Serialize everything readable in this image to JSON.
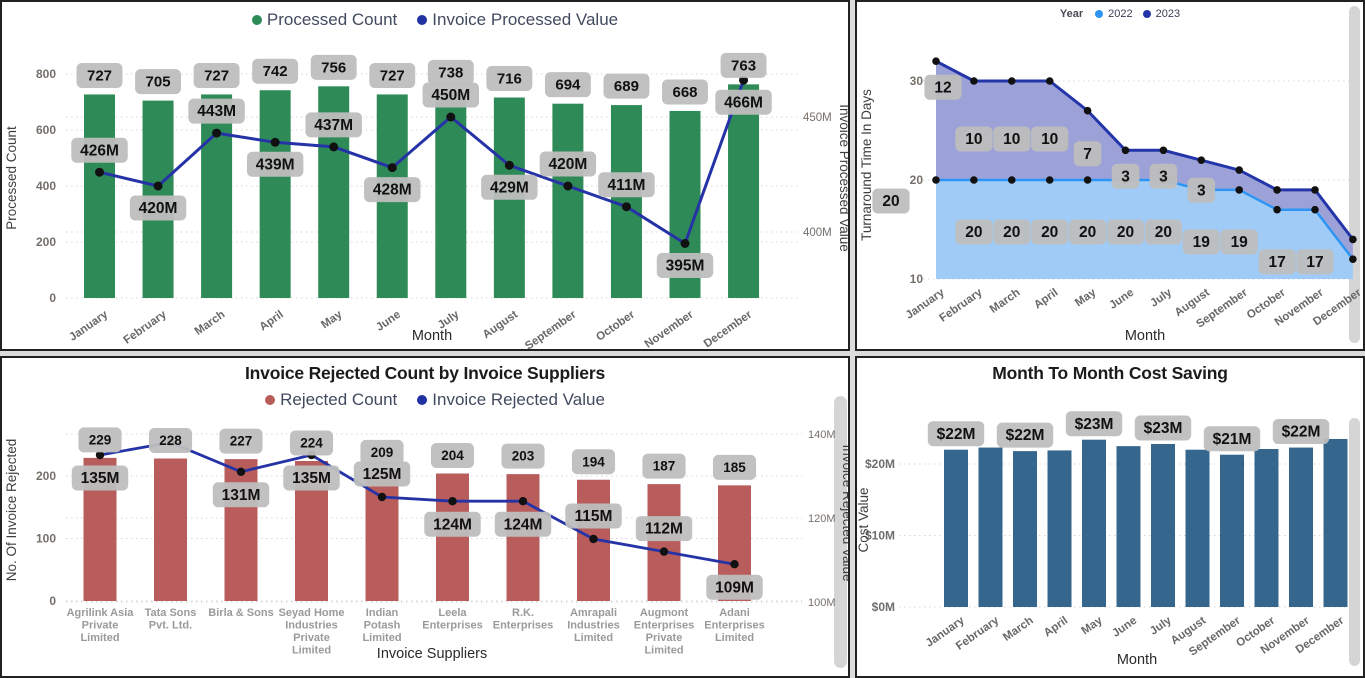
{
  "colors": {
    "bar_green": "#2E8B57",
    "line_navy": "#2533A6",
    "legend_navy": "#2131A1",
    "bar_maroon": "#B85C5C",
    "bar_steel_blue": "#35678E",
    "area_2022_fill": "#A1CBF7",
    "area_2022_line": "#2E95F4",
    "area_2023_fill": "#9CA2D8",
    "area_2023_line": "#2335A8",
    "label_pill_bg": "#BEBEBE",
    "label_text": "#111111",
    "gridline": "#D6D6D6",
    "axis_tick_text": "#756F6A",
    "month_label_text": "#686868",
    "supplier_label_text": "#9A9A9A",
    "axis_title_text": "#3F3F3F",
    "marker_black": "#111111"
  },
  "chart_data": [
    {
      "type": "combo-bar-line",
      "categories": [
        "January",
        "February",
        "March",
        "April",
        "May",
        "June",
        "July",
        "August",
        "September",
        "October",
        "November",
        "December"
      ],
      "bar_series": {
        "name": "Processed Count",
        "color": "#2E8B57",
        "values": [
          727,
          705,
          727,
          742,
          756,
          727,
          738,
          716,
          694,
          689,
          668,
          763
        ],
        "labels": [
          "727",
          "705",
          "727",
          "742",
          "756",
          "727",
          "738",
          "716",
          "694",
          "689",
          "668",
          "763"
        ]
      },
      "line_series": {
        "name": "Invoice Processed Value",
        "color": "#2533A6",
        "values_millions": [
          426,
          420,
          443,
          439,
          437,
          428,
          450,
          429,
          420,
          411,
          395,
          466
        ],
        "labels": [
          "426M",
          "420M",
          "443M",
          "439M",
          "437M",
          "428M",
          "450M",
          "429M",
          "420M",
          "411M",
          "395M",
          "466M"
        ]
      },
      "y_left": {
        "title": "Processed Count",
        "ticks": [
          0,
          200,
          400,
          600,
          800
        ],
        "range": [
          0,
          800
        ]
      },
      "y_right": {
        "title": "Invoice Processed Value",
        "ticks": [
          "400M",
          "450M"
        ],
        "tick_values_millions": [
          400,
          450
        ]
      },
      "x_axis": {
        "title": "Month"
      }
    },
    {
      "type": "stacked-area",
      "legend_title": "Year",
      "categories": [
        "January",
        "February",
        "March",
        "April",
        "May",
        "June",
        "July",
        "August",
        "September",
        "October",
        "November",
        "December"
      ],
      "series": [
        {
          "name": "2022",
          "fill": "#A1CBF7",
          "line": "#2E95F4",
          "values": [
            20,
            20,
            20,
            20,
            20,
            20,
            20,
            19,
            19,
            17,
            17,
            12
          ],
          "labels": [
            "20",
            "20",
            "20",
            "20",
            "20",
            "20",
            "20",
            "19",
            "19",
            "17",
            "17",
            ""
          ]
        },
        {
          "name": "2023",
          "fill": "#9CA2D8",
          "line": "#2335A8",
          "values": [
            12,
            10,
            10,
            10,
            7,
            3,
            3,
            3,
            2,
            2,
            2,
            2
          ],
          "labels": [
            "12",
            "10",
            "10",
            "10",
            "7",
            "3",
            "3",
            "3",
            "",
            "",
            "",
            ""
          ]
        }
      ],
      "y_axis": {
        "title": "Turnaround Time In Days",
        "ticks": [
          10,
          20,
          30
        ],
        "range": [
          10,
          33
        ]
      },
      "x_axis": {
        "title": "Month"
      }
    },
    {
      "type": "combo-bar-line",
      "title": "Invoice Rejected Count by Invoice Suppliers",
      "categories": [
        "Agrilink Asia Private Limited",
        "Tata Sons Pvt. Ltd.",
        "Birla & Sons",
        "Seyad Home Industries Private Limited",
        "Indian Potash Limited",
        "Leela Enterprises",
        "R.K. Enterprises",
        "Amrapali Industries Limited",
        "Augmont Enterprises Private Limited",
        "Adani Enterprises Limited"
      ],
      "category_lines": [
        [
          "Agrilink Asia",
          "Private",
          "Limited"
        ],
        [
          "Tata Sons",
          "Pvt. Ltd."
        ],
        [
          "Birla & Sons"
        ],
        [
          "Seyad Home",
          "Industries",
          "Private",
          "Limited"
        ],
        [
          "Indian",
          "Potash",
          "Limited"
        ],
        [
          "Leela",
          "Enterprises"
        ],
        [
          "R.K.",
          "Enterprises"
        ],
        [
          "Amrapali",
          "Industries",
          "Limited"
        ],
        [
          "Augmont",
          "Enterprises",
          "Private",
          "Limited"
        ],
        [
          "Adani",
          "Enterprises",
          "Limited"
        ]
      ],
      "bar_series": {
        "name": "Rejected Count",
        "color": "#B85C5C",
        "values": [
          229,
          228,
          227,
          224,
          209,
          204,
          203,
          194,
          187,
          185
        ],
        "labels": [
          "229",
          "228",
          "227",
          "224",
          "209",
          "204",
          "203",
          "194",
          "187",
          "185"
        ]
      },
      "line_series": {
        "name": "Invoice Rejected Value",
        "color": "#2533A6",
        "values_millions": [
          135,
          138,
          131,
          135,
          125,
          124,
          124,
          115,
          112,
          109
        ],
        "labels": [
          "135M",
          "",
          "131M",
          "135M",
          "125M",
          "124M",
          "124M",
          "115M",
          "112M",
          "109M"
        ]
      },
      "y_left": {
        "title": "No. Of Invoice Rejected",
        "ticks": [
          0,
          100,
          200
        ]
      },
      "y_right": {
        "title": "Invoice Rejected Value",
        "ticks": [
          "100M",
          "120M",
          "140M"
        ],
        "tick_values_millions": [
          100,
          120,
          140
        ]
      },
      "x_axis": {
        "title": "Invoice Suppliers"
      }
    },
    {
      "type": "bar",
      "title": "Month To Month Cost Saving",
      "categories": [
        "January",
        "February",
        "March",
        "April",
        "May",
        "June",
        "July",
        "August",
        "September",
        "October",
        "November",
        "December"
      ],
      "series_name": "Cost Value",
      "color": "#35678E",
      "values_millions": [
        22,
        22.3,
        21.8,
        21.9,
        23.4,
        22.5,
        22.8,
        22,
        21.3,
        22.1,
        22.3,
        23.5
      ],
      "labels": [
        "$22M",
        "",
        "$22M",
        "",
        "$23M",
        "",
        "$23M",
        "",
        "$21M",
        "",
        "$22M",
        ""
      ],
      "y_axis": {
        "title": "Cost Value",
        "ticks": [
          "$0M",
          "$10M",
          "$20M"
        ],
        "tick_values_millions": [
          0,
          10,
          20
        ]
      },
      "x_axis": {
        "title": "Month"
      }
    }
  ]
}
